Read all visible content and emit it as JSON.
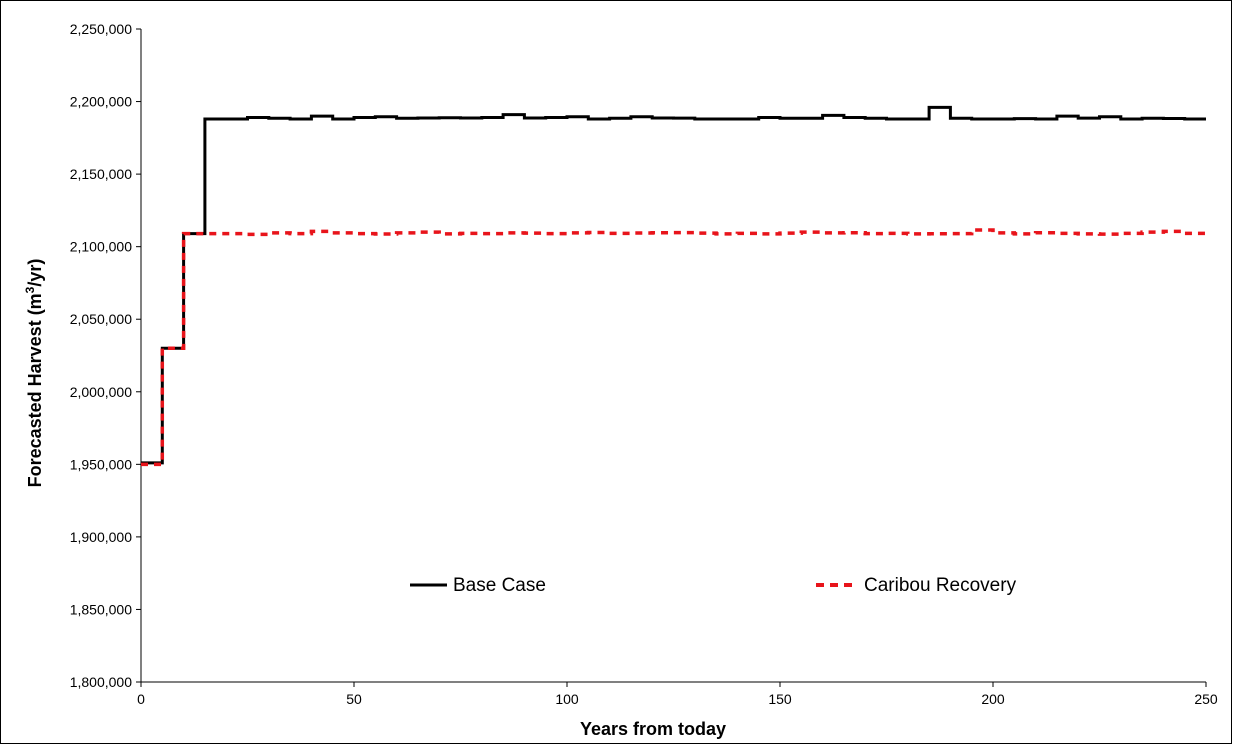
{
  "chart_data": {
    "type": "line",
    "title": "",
    "xlabel": "Years from today",
    "ylabel_main": "Forecasted Harvest (m",
    "ylabel_sup": "3",
    "ylabel_tail": "/yr)",
    "xlim": [
      0,
      250
    ],
    "ylim": [
      1800000,
      2250000
    ],
    "x_ticks": [
      0,
      50,
      100,
      150,
      200,
      250
    ],
    "x_tick_labels": [
      "0",
      "50",
      "100",
      "150",
      "200",
      "250"
    ],
    "y_ticks": [
      1800000,
      1850000,
      1900000,
      1950000,
      2000000,
      2050000,
      2100000,
      2150000,
      2200000,
      2250000
    ],
    "y_tick_labels": [
      "1,800,000",
      "1,850,000",
      "1,900,000",
      "1,950,000",
      "2,000,000",
      "2,050,000",
      "2,100,000",
      "2,150,000",
      "2,200,000",
      "2,250,000"
    ],
    "grid": false,
    "legend_position": "center",
    "step_years": 5,
    "series": [
      {
        "name": "Base Case",
        "color": "#000000",
        "style": "solid",
        "values": [
          1951000,
          2030000,
          2109000,
          2188000,
          2188000,
          2189000,
          2188500,
          2188000,
          2190000,
          2188000,
          2189000,
          2189500,
          2188500,
          2188700,
          2188800,
          2188700,
          2189000,
          2191000,
          2188700,
          2189000,
          2189500,
          2188000,
          2188500,
          2189500,
          2188700,
          2188600,
          2188000,
          2188000,
          2188000,
          2189000,
          2188500,
          2188500,
          2190500,
          2189000,
          2188500,
          2188000,
          2188000,
          2196000,
          2188500,
          2188000,
          2188000,
          2188200,
          2188000,
          2190000,
          2188600,
          2189500,
          2188000,
          2188500,
          2188300,
          2188000
        ]
      },
      {
        "name": "Caribou Recovery",
        "color": "#e8141b",
        "style": "dashed",
        "values": [
          1950000,
          2030000,
          2109000,
          2109000,
          2109000,
          2108500,
          2109500,
          2109000,
          2110500,
          2109500,
          2109000,
          2108700,
          2109500,
          2110000,
          2108800,
          2109200,
          2109000,
          2109500,
          2109300,
          2109000,
          2109500,
          2109800,
          2109200,
          2109400,
          2109600,
          2109700,
          2109300,
          2108800,
          2109200,
          2108800,
          2109300,
          2110000,
          2109500,
          2109600,
          2109000,
          2109200,
          2108800,
          2108900,
          2109000,
          2111500,
          2109500,
          2108800,
          2109600,
          2109200,
          2108800,
          2108600,
          2109200,
          2110000,
          2110500,
          2109200
        ]
      }
    ]
  }
}
